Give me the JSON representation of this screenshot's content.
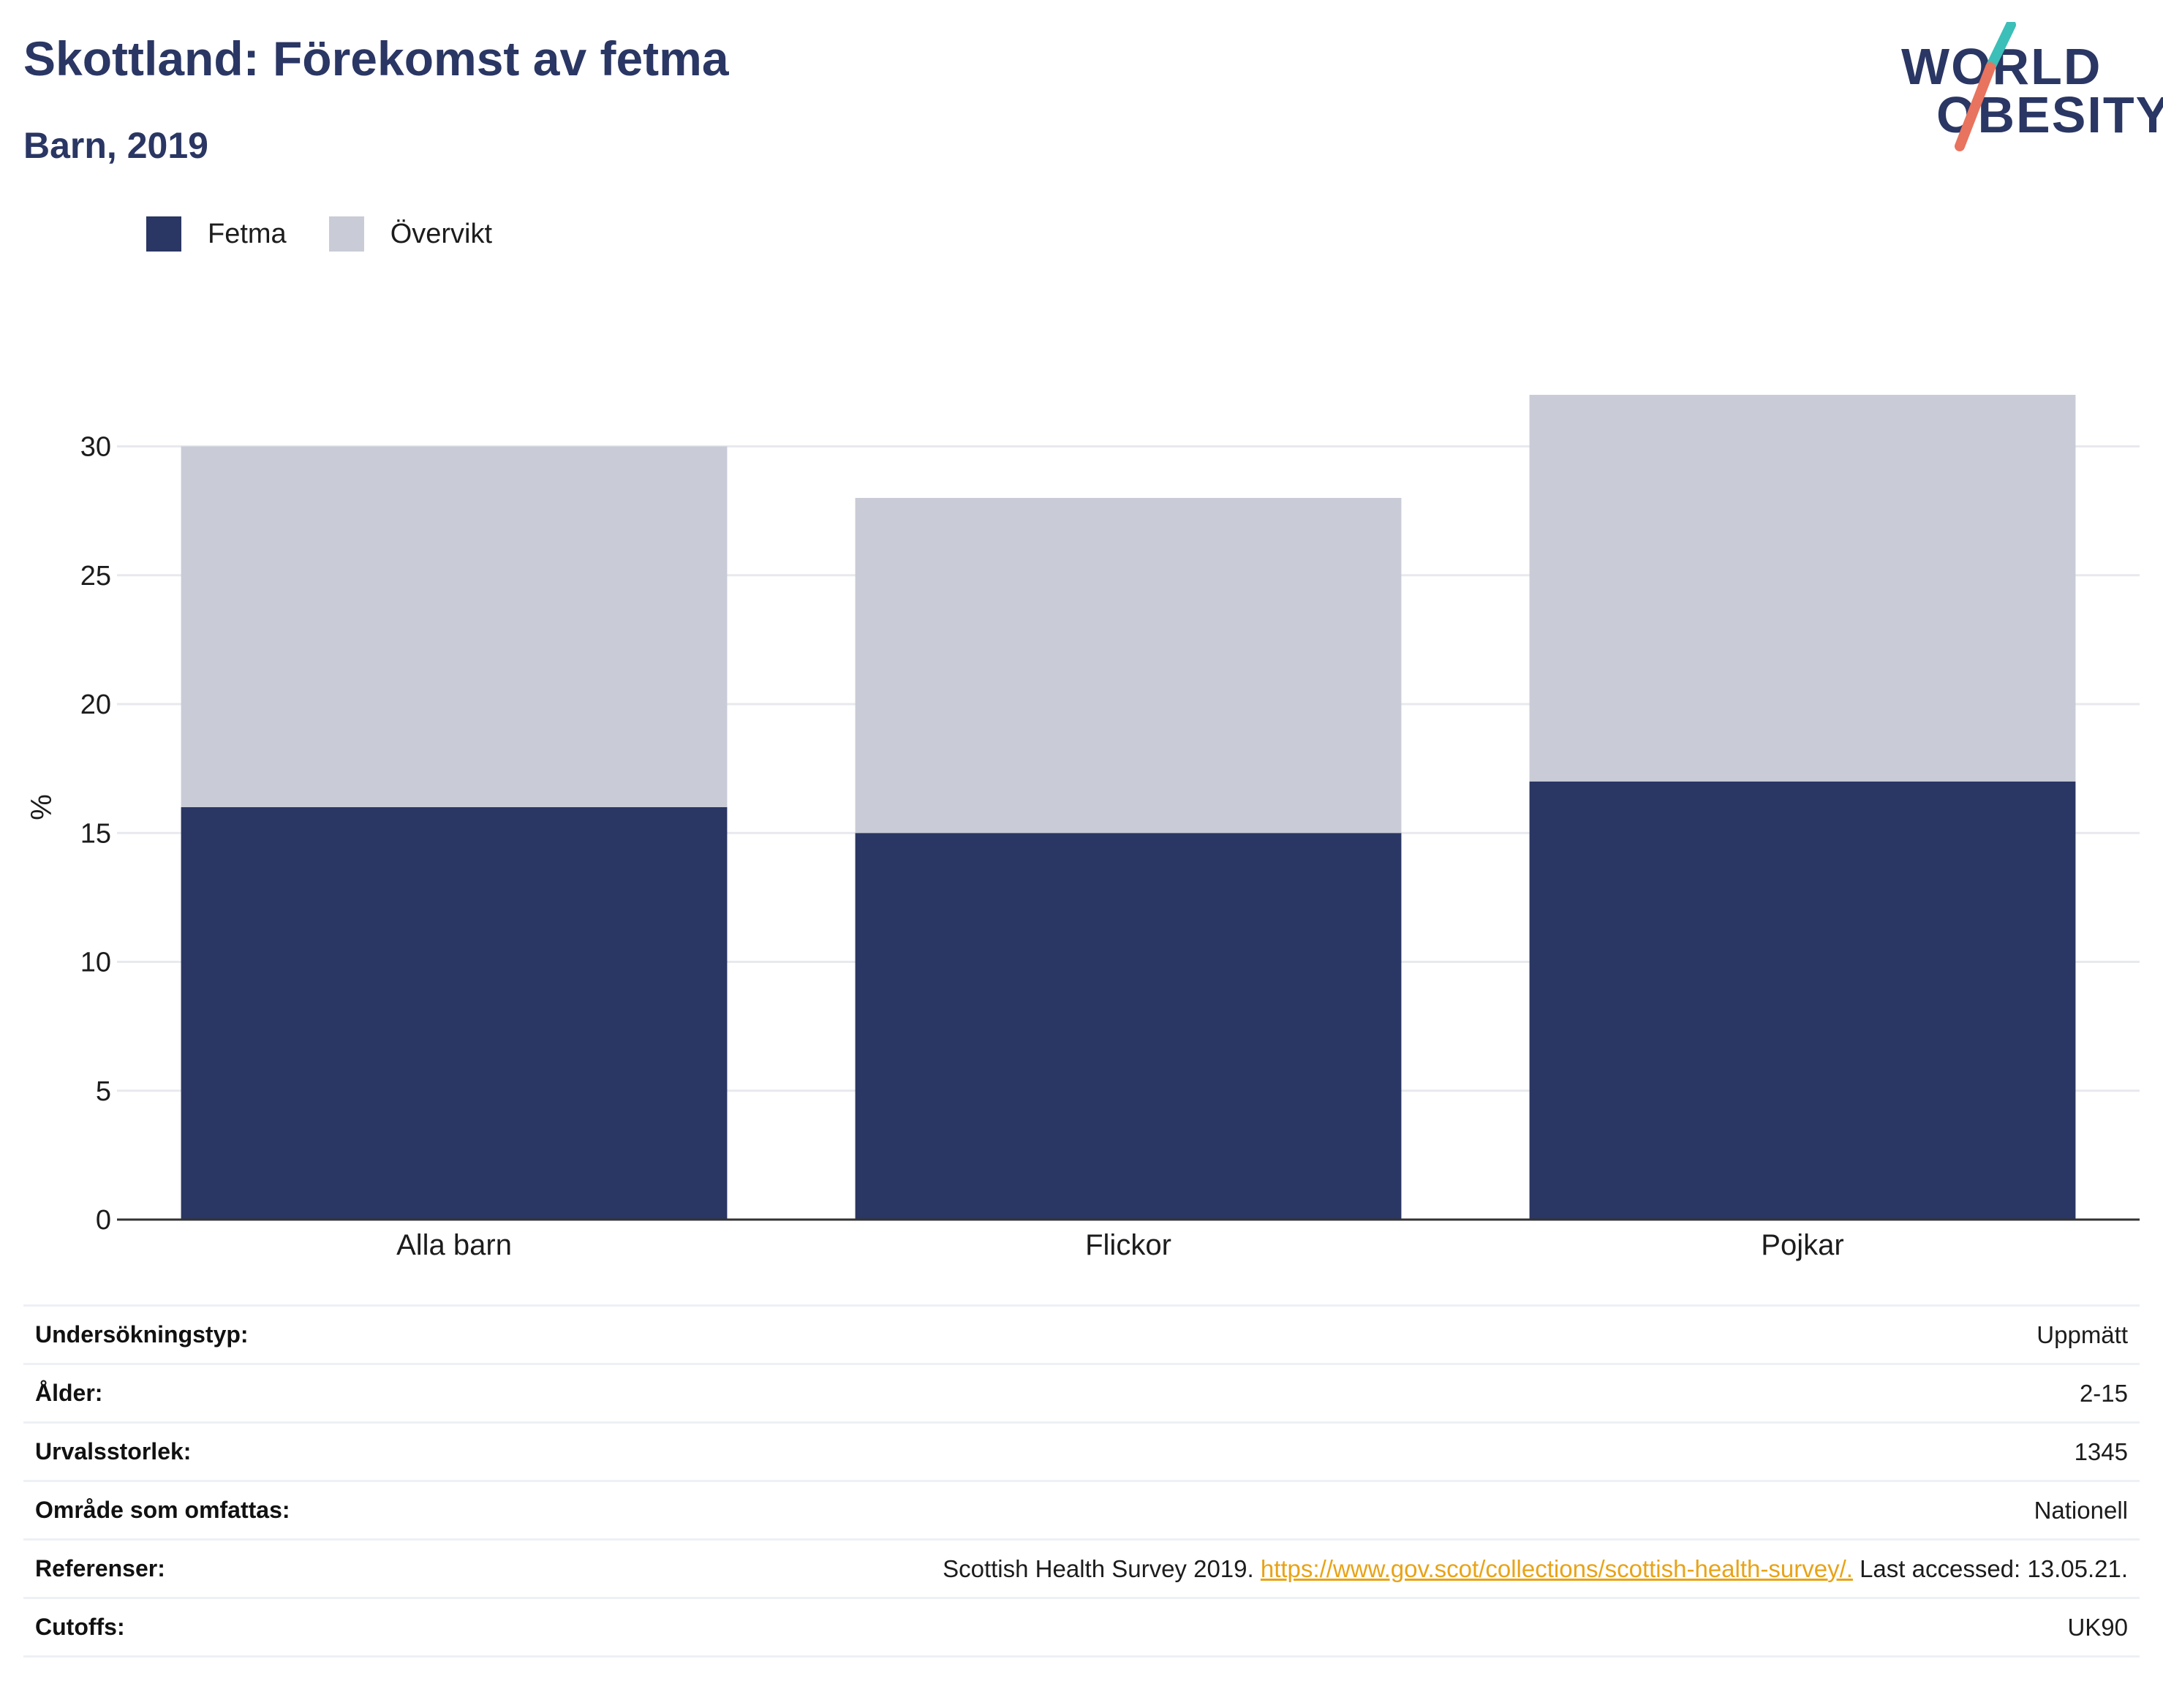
{
  "header": {
    "title": "Skottland: Förekomst av fetma",
    "subtitle": "Barn, 2019"
  },
  "logo": {
    "line1": "WORLD",
    "line2": "OBESITY",
    "slash_colors": [
      "#3bbfb8",
      "#e8735e"
    ]
  },
  "legend": [
    {
      "label": "Fetma",
      "color": "#2a3663"
    },
    {
      "label": "Övervikt",
      "color": "#c9cbd6"
    }
  ],
  "chart_data": {
    "type": "bar",
    "stacked": true,
    "categories": [
      "Alla barn",
      "Flickor",
      "Pojkar"
    ],
    "series": [
      {
        "name": "Fetma",
        "values": [
          16,
          15,
          17
        ],
        "color": "#2a3663"
      },
      {
        "name": "Övervikt",
        "values": [
          14,
          13,
          15
        ],
        "color": "#c9cbd6"
      }
    ],
    "ylabel": "%",
    "xlabel": "",
    "ylim": [
      0,
      32
    ],
    "yticks": [
      0,
      5,
      10,
      15,
      20,
      25,
      30
    ],
    "grid": true,
    "legend_position": "top-left"
  },
  "meta": {
    "rows": [
      {
        "label": "Undersökningstyp:",
        "value": "Uppmätt"
      },
      {
        "label": "Ålder:",
        "value": "2-15"
      },
      {
        "label": "Urvalsstorlek:",
        "value": "1345"
      },
      {
        "label": "Område som omfattas:",
        "value": "Nationell"
      },
      {
        "label": "Referenser:",
        "value_prefix": "Scottish Health Survey 2019. ",
        "link": "https://www.gov.scot/collections/scottish-health-survey/.",
        "value_suffix": " Last accessed: 13.05.21."
      },
      {
        "label": "Cutoffs:",
        "value": "UK90"
      }
    ]
  }
}
